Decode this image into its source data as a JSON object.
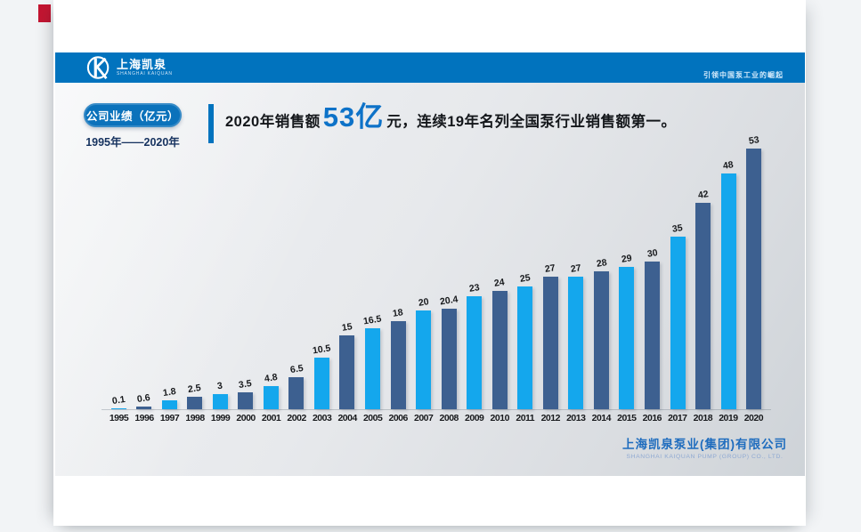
{
  "header": {
    "logo_cn": "上海凯泉",
    "logo_en": "SHANGHAI KAIQUAN",
    "slogan": "引领中国泵工业的崛起"
  },
  "badge": {
    "title": "公司业绩（亿元）",
    "period": "1995年——2020年"
  },
  "headline": {
    "prefix": "2020年销售额",
    "highlight": "53亿",
    "suffix": "元，连续19年名列全国泵行业销售额第一。"
  },
  "footer": {
    "company_cn": "上海凯泉泵业(集团)有限公司",
    "company_en": "SHANGHAI KAIQUAN PUMP (GROUP) CO., LTD."
  },
  "chart_data": {
    "type": "bar",
    "title": "公司业绩（亿元） 1995年——2020年",
    "xlabel": "",
    "ylabel": "",
    "categories": [
      "1995",
      "1996",
      "1997",
      "1998",
      "1999",
      "2000",
      "2001",
      "2002",
      "2003",
      "2004",
      "2005",
      "2006",
      "2007",
      "2008",
      "2009",
      "2010",
      "2011",
      "2012",
      "2013",
      "2014",
      "2015",
      "2016",
      "2017",
      "2018",
      "2019",
      "2020"
    ],
    "values": [
      0.1,
      0.6,
      1.8,
      2.5,
      3,
      3.5,
      4.8,
      6.5,
      10.5,
      15,
      16.5,
      18,
      20,
      20.4,
      23,
      24,
      25,
      27,
      27,
      28,
      29,
      30,
      35,
      42,
      48,
      53
    ],
    "ylim": [
      0,
      55
    ],
    "grid": false,
    "legend": "none",
    "data_labels": true,
    "bar_color_odd_year": "#14A7ED",
    "bar_color_even_year": "#3D6090"
  },
  "colors": {
    "header_band": "#0173BE",
    "badge": "#0B72BB",
    "highlight_text": "#0D72C8",
    "page_background": "#F2F4F6",
    "red_marker": "#C41531"
  }
}
